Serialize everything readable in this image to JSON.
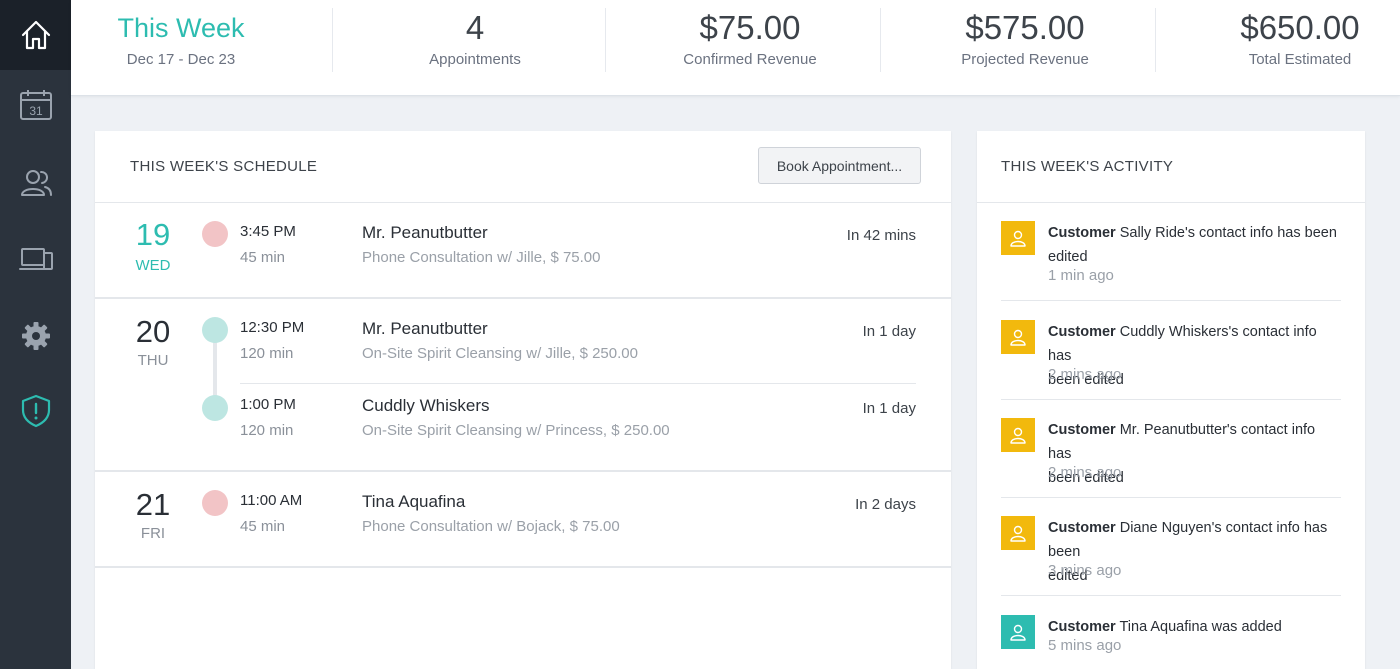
{
  "sidebar": {
    "items": [
      {
        "icon": "home-icon",
        "active": true
      },
      {
        "icon": "calendar-icon",
        "label": "31"
      },
      {
        "icon": "users-icon"
      },
      {
        "icon": "devices-icon"
      },
      {
        "icon": "gear-icon"
      },
      {
        "icon": "shield-icon"
      }
    ]
  },
  "stats": {
    "week_title": "This Week",
    "week_range": "Dec 17 - Dec 23",
    "appointments_value": "4",
    "appointments_label": "Appointments",
    "confirmed_value": "$75.00",
    "confirmed_label": "Confirmed Revenue",
    "projected_value": "$575.00",
    "projected_label": "Projected Revenue",
    "total_value": "$650.00",
    "total_label": "Total Estimated"
  },
  "schedule": {
    "title": "THIS WEEK'S SCHEDULE",
    "book_label": "Book Appointment...",
    "days": [
      {
        "num": "19",
        "name": "WED",
        "appointments": [
          {
            "time": "3:45 PM",
            "duration": "45 min",
            "client": "Mr. Peanutbutter",
            "desc": "Phone Consultation w/ Jille, $ 75.00",
            "relative": "In 42 mins"
          }
        ]
      },
      {
        "num": "20",
        "name": "THU",
        "appointments": [
          {
            "time": "12:30 PM",
            "duration": "120 min",
            "client": "Mr. Peanutbutter",
            "desc": "On-Site Spirit Cleansing w/ Jille, $ 250.00",
            "relative": "In 1 day"
          },
          {
            "time": "1:00 PM",
            "duration": "120 min",
            "client": "Cuddly Whiskers",
            "desc": "On-Site Spirit Cleansing w/ Princess, $ 250.00",
            "relative": "In 1 day"
          }
        ]
      },
      {
        "num": "21",
        "name": "FRI",
        "appointments": [
          {
            "time": "11:00 AM",
            "duration": "45 min",
            "client": "Tina Aquafina",
            "desc": "Phone Consultation w/ Bojack, $ 75.00",
            "relative": "In 2 days"
          }
        ]
      }
    ]
  },
  "activity": {
    "title": "THIS WEEK'S ACTIVITY",
    "colors": {
      "edited": "#f2b90d",
      "added": "#2dbcb0"
    },
    "items": [
      {
        "type": "Customer",
        "text_line1": "Sally Ride's contact info has been",
        "text_line2": "edited",
        "time": "1 min ago"
      },
      {
        "type": "Customer",
        "text_line1": "Cuddly Whiskers's contact info has",
        "text_line2": "been edited",
        "time": "2 mins ago"
      },
      {
        "type": "Customer",
        "text_line1": "Mr. Peanutbutter's contact info has",
        "text_line2": "been edited",
        "time": "2 mins ago"
      },
      {
        "type": "Customer",
        "text_line1": "Diane Nguyen's contact info has been",
        "text_line2": "edited",
        "time": "3 mins ago"
      },
      {
        "type": "Customer",
        "text_line1": "Tina Aquafina was added",
        "text_line2": "",
        "time": "5 mins ago"
      }
    ]
  }
}
